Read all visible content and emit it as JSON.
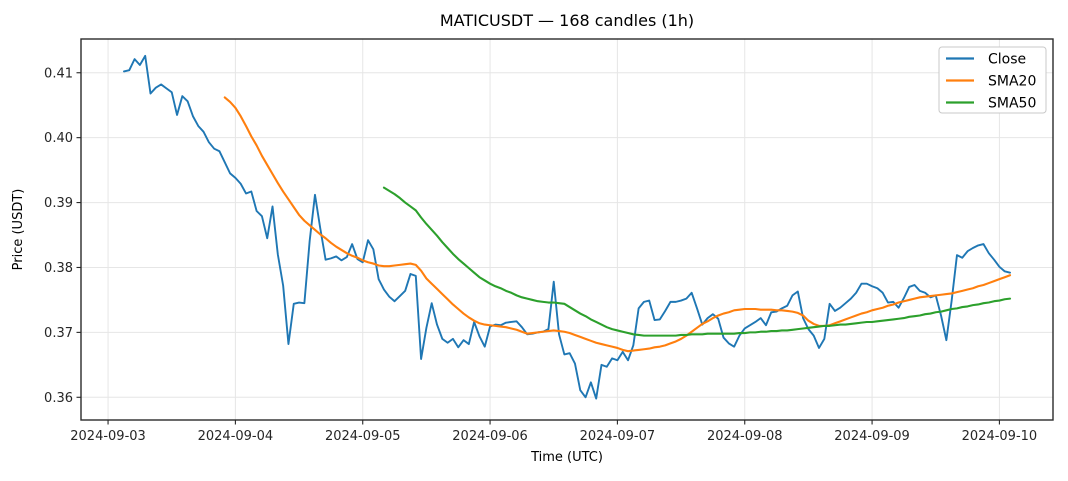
{
  "figure": {
    "background_color": "#ffffff",
    "grid_color": "#e6e6e6",
    "spine_color": "#2a2a2a",
    "text_color": "#000000"
  },
  "chart_data": {
    "type": "line",
    "title": "MATICUSDT — 168 candles (1h)",
    "xlabel": "Time (UTC)",
    "ylabel": "Price (USDT)",
    "symbol": "MATICUSDT",
    "n_candles": 168,
    "interval": "1h",
    "grid": true,
    "legend_position": "upper right",
    "x_start_hour": 3,
    "x_start_label": "2024-09-03 (candles begin 03:00 UTC)",
    "xlim_hours": [
      -5.1,
      178.1
    ],
    "ylim": [
      0.3565,
      0.4152
    ],
    "y_ticks": [
      0.36,
      0.37,
      0.38,
      0.39,
      0.4,
      0.41
    ],
    "x_ticks": [
      {
        "hours": 0,
        "label": "2024-09-03"
      },
      {
        "hours": 24,
        "label": "2024-09-04"
      },
      {
        "hours": 48,
        "label": "2024-09-05"
      },
      {
        "hours": 72,
        "label": "2024-09-06"
      },
      {
        "hours": 96,
        "label": "2024-09-07"
      },
      {
        "hours": 120,
        "label": "2024-09-08"
      },
      {
        "hours": 144,
        "label": "2024-09-09"
      },
      {
        "hours": 168,
        "label": "2024-09-10"
      }
    ],
    "series": [
      {
        "name": "Close",
        "color": "#1f77b4",
        "line_width": 1.9,
        "start_index": 0,
        "values": [
          0.4102,
          0.4104,
          0.4121,
          0.4112,
          0.4126,
          0.4068,
          0.4077,
          0.4082,
          0.4076,
          0.407,
          0.4035,
          0.4064,
          0.4056,
          0.4033,
          0.4018,
          0.4009,
          0.3993,
          0.3983,
          0.3979,
          0.3962,
          0.3945,
          0.3938,
          0.3929,
          0.3914,
          0.3917,
          0.3887,
          0.3879,
          0.3845,
          0.3894,
          0.382,
          0.3772,
          0.3682,
          0.3744,
          0.3746,
          0.3745,
          0.3841,
          0.3912,
          0.386,
          0.3812,
          0.3814,
          0.3817,
          0.3811,
          0.3816,
          0.3836,
          0.3813,
          0.3808,
          0.3842,
          0.3828,
          0.3782,
          0.3766,
          0.3755,
          0.3748,
          0.3756,
          0.3764,
          0.379,
          0.3787,
          0.3659,
          0.3707,
          0.3745,
          0.3712,
          0.369,
          0.3684,
          0.369,
          0.3677,
          0.3688,
          0.3682,
          0.3716,
          0.3694,
          0.3678,
          0.3709,
          0.3712,
          0.3711,
          0.3715,
          0.3716,
          0.3717,
          0.3708,
          0.3697,
          0.3698,
          0.37,
          0.3701,
          0.3705,
          0.3778,
          0.3697,
          0.3666,
          0.3668,
          0.3652,
          0.3611,
          0.36,
          0.3623,
          0.3598,
          0.365,
          0.3647,
          0.366,
          0.3657,
          0.367,
          0.3657,
          0.368,
          0.3737,
          0.3747,
          0.3749,
          0.3719,
          0.372,
          0.3733,
          0.3747,
          0.3747,
          0.3749,
          0.3752,
          0.3761,
          0.3737,
          0.3712,
          0.3722,
          0.3728,
          0.3721,
          0.3692,
          0.3683,
          0.3678,
          0.3695,
          0.3706,
          0.3711,
          0.3716,
          0.3722,
          0.3711,
          0.3731,
          0.3732,
          0.3737,
          0.3741,
          0.3757,
          0.3763,
          0.3722,
          0.3705,
          0.3695,
          0.3676,
          0.369,
          0.3744,
          0.3733,
          0.3738,
          0.3745,
          0.3752,
          0.3761,
          0.3775,
          0.3775,
          0.3771,
          0.3768,
          0.3761,
          0.3746,
          0.3747,
          0.3738,
          0.3753,
          0.377,
          0.3773,
          0.3764,
          0.3761,
          0.3754,
          0.3757,
          0.3726,
          0.3688,
          0.3749,
          0.3819,
          0.3815,
          0.3825,
          0.383,
          0.3834,
          0.3836,
          0.3822,
          0.3812,
          0.3801,
          0.3794,
          0.3792
        ]
      },
      {
        "name": "SMA20",
        "color": "#ff7f0e",
        "line_width": 2.1,
        "start_index": 19,
        "values": [
          0.4062,
          0.4055,
          0.4046,
          0.4033,
          0.4018,
          0.4002,
          0.3988,
          0.3972,
          0.3958,
          0.3944,
          0.393,
          0.3917,
          0.3905,
          0.3893,
          0.3881,
          0.3872,
          0.3865,
          0.3858,
          0.3851,
          0.3845,
          0.3838,
          0.3832,
          0.3827,
          0.3822,
          0.3818,
          0.3815,
          0.3811,
          0.3808,
          0.3806,
          0.3803,
          0.3802,
          0.3802,
          0.3803,
          0.3804,
          0.3805,
          0.3806,
          0.3804,
          0.3795,
          0.3783,
          0.3775,
          0.3767,
          0.3759,
          0.3751,
          0.3743,
          0.3736,
          0.3729,
          0.3723,
          0.3718,
          0.3714,
          0.3712,
          0.3711,
          0.371,
          0.3709,
          0.3708,
          0.3706,
          0.3704,
          0.3701,
          0.3698,
          0.3699,
          0.37,
          0.3701,
          0.3702,
          0.3703,
          0.3702,
          0.3701,
          0.3699,
          0.3696,
          0.3693,
          0.369,
          0.3687,
          0.3684,
          0.3682,
          0.368,
          0.3678,
          0.3676,
          0.3673,
          0.3671,
          0.3672,
          0.3673,
          0.3674,
          0.3675,
          0.3677,
          0.3678,
          0.368,
          0.3683,
          0.3686,
          0.369,
          0.3695,
          0.3701,
          0.3707,
          0.3713,
          0.3717,
          0.3722,
          0.3726,
          0.3729,
          0.3731,
          0.3734,
          0.3735,
          0.3736,
          0.3736,
          0.3736,
          0.3735,
          0.3735,
          0.3735,
          0.3734,
          0.3734,
          0.3733,
          0.3732,
          0.373,
          0.3726,
          0.3718,
          0.3713,
          0.371,
          0.371,
          0.3711,
          0.3714,
          0.3717,
          0.372,
          0.3723,
          0.3726,
          0.3729,
          0.3731,
          0.3734,
          0.3736,
          0.3738,
          0.3741,
          0.3743,
          0.3746,
          0.3748,
          0.375,
          0.3752,
          0.3754,
          0.3755,
          0.3756,
          0.3757,
          0.3758,
          0.3759,
          0.376,
          0.3762,
          0.3764,
          0.3766,
          0.3768,
          0.3771,
          0.3773,
          0.3776,
          0.3779,
          0.3782,
          0.3785,
          0.3788
        ]
      },
      {
        "name": "SMA50",
        "color": "#2ca02c",
        "line_width": 2.1,
        "start_index": 49,
        "values": [
          0.3923,
          0.3918,
          0.3913,
          0.3907,
          0.39,
          0.3894,
          0.3888,
          0.3877,
          0.3867,
          0.3858,
          0.3849,
          0.3839,
          0.383,
          0.3821,
          0.3813,
          0.3806,
          0.3799,
          0.3792,
          0.3785,
          0.378,
          0.3775,
          0.3771,
          0.3768,
          0.3764,
          0.3761,
          0.3757,
          0.3754,
          0.3752,
          0.375,
          0.3748,
          0.3747,
          0.3746,
          0.3746,
          0.3745,
          0.3744,
          0.3739,
          0.3734,
          0.3729,
          0.3725,
          0.372,
          0.3716,
          0.3712,
          0.3708,
          0.3705,
          0.3703,
          0.3701,
          0.3699,
          0.3697,
          0.3696,
          0.3695,
          0.3695,
          0.3695,
          0.3695,
          0.3695,
          0.3695,
          0.3695,
          0.3696,
          0.3696,
          0.3697,
          0.3697,
          0.3697,
          0.3698,
          0.3698,
          0.3698,
          0.3698,
          0.3698,
          0.3698,
          0.3699,
          0.3699,
          0.37,
          0.37,
          0.3701,
          0.3701,
          0.3702,
          0.3702,
          0.3703,
          0.3703,
          0.3704,
          0.3705,
          0.3706,
          0.3707,
          0.3708,
          0.3709,
          0.371,
          0.371,
          0.3711,
          0.3712,
          0.3712,
          0.3713,
          0.3714,
          0.3715,
          0.3716,
          0.3716,
          0.3717,
          0.3718,
          0.3719,
          0.372,
          0.3721,
          0.3722,
          0.3724,
          0.3725,
          0.3726,
          0.3728,
          0.3729,
          0.3731,
          0.3732,
          0.3734,
          0.3736,
          0.3737,
          0.3739,
          0.374,
          0.3742,
          0.3743,
          0.3745,
          0.3746,
          0.3748,
          0.3749,
          0.3751,
          0.3752
        ]
      }
    ]
  }
}
